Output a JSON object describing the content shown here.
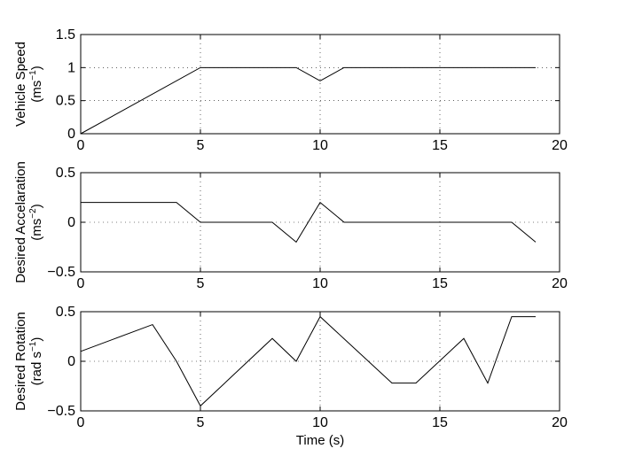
{
  "chart_data": [
    {
      "type": "line",
      "ylabel_line1": "Vehicle Speed",
      "ylabel_unit_pre": "(ms",
      "ylabel_unit_sup": "−1",
      "ylabel_unit_post": ")",
      "xlabel": "",
      "xlim": [
        0,
        20
      ],
      "ylim": [
        0,
        1.5
      ],
      "xticks": [
        "0",
        "5",
        "10",
        "15",
        "20"
      ],
      "yticks": [
        "0",
        "0.5",
        "1",
        "1.5"
      ],
      "grid": true,
      "x": [
        0,
        5,
        9,
        10,
        11,
        19
      ],
      "y": [
        0,
        1,
        1,
        0.8,
        1,
        1
      ]
    },
    {
      "type": "line",
      "ylabel_line1": "Desired Accelaration",
      "ylabel_unit_pre": "(ms",
      "ylabel_unit_sup": "−2",
      "ylabel_unit_post": ")",
      "xlabel": "",
      "xlim": [
        0,
        20
      ],
      "ylim": [
        -0.5,
        0.5
      ],
      "xticks": [
        "0",
        "5",
        "10",
        "15",
        "20"
      ],
      "yticks": [
        "−0.5",
        "0",
        "0.5"
      ],
      "grid": true,
      "x": [
        0,
        4,
        5,
        8,
        9,
        10,
        11,
        18,
        19
      ],
      "y": [
        0.2,
        0.2,
        0,
        0,
        -0.2,
        0.2,
        0,
        0,
        -0.2
      ]
    },
    {
      "type": "line",
      "ylabel_line1": "Desired Rotation",
      "ylabel_unit_pre": "(rad s",
      "ylabel_unit_sup": "−1",
      "ylabel_unit_post": ")",
      "xlabel": "Time (s)",
      "xlim": [
        0,
        20
      ],
      "ylim": [
        -0.5,
        0.5
      ],
      "xticks": [
        "0",
        "5",
        "10",
        "15",
        "20"
      ],
      "yticks": [
        "−0.5",
        "0",
        "0.5"
      ],
      "grid": true,
      "x": [
        0,
        3,
        4,
        5,
        8,
        9,
        10,
        13,
        14,
        16,
        17,
        18,
        19
      ],
      "y": [
        0.1,
        0.37,
        0,
        -0.45,
        0.23,
        0,
        0.45,
        -0.22,
        -0.22,
        0.23,
        -0.22,
        0.45,
        0.45
      ]
    }
  ]
}
